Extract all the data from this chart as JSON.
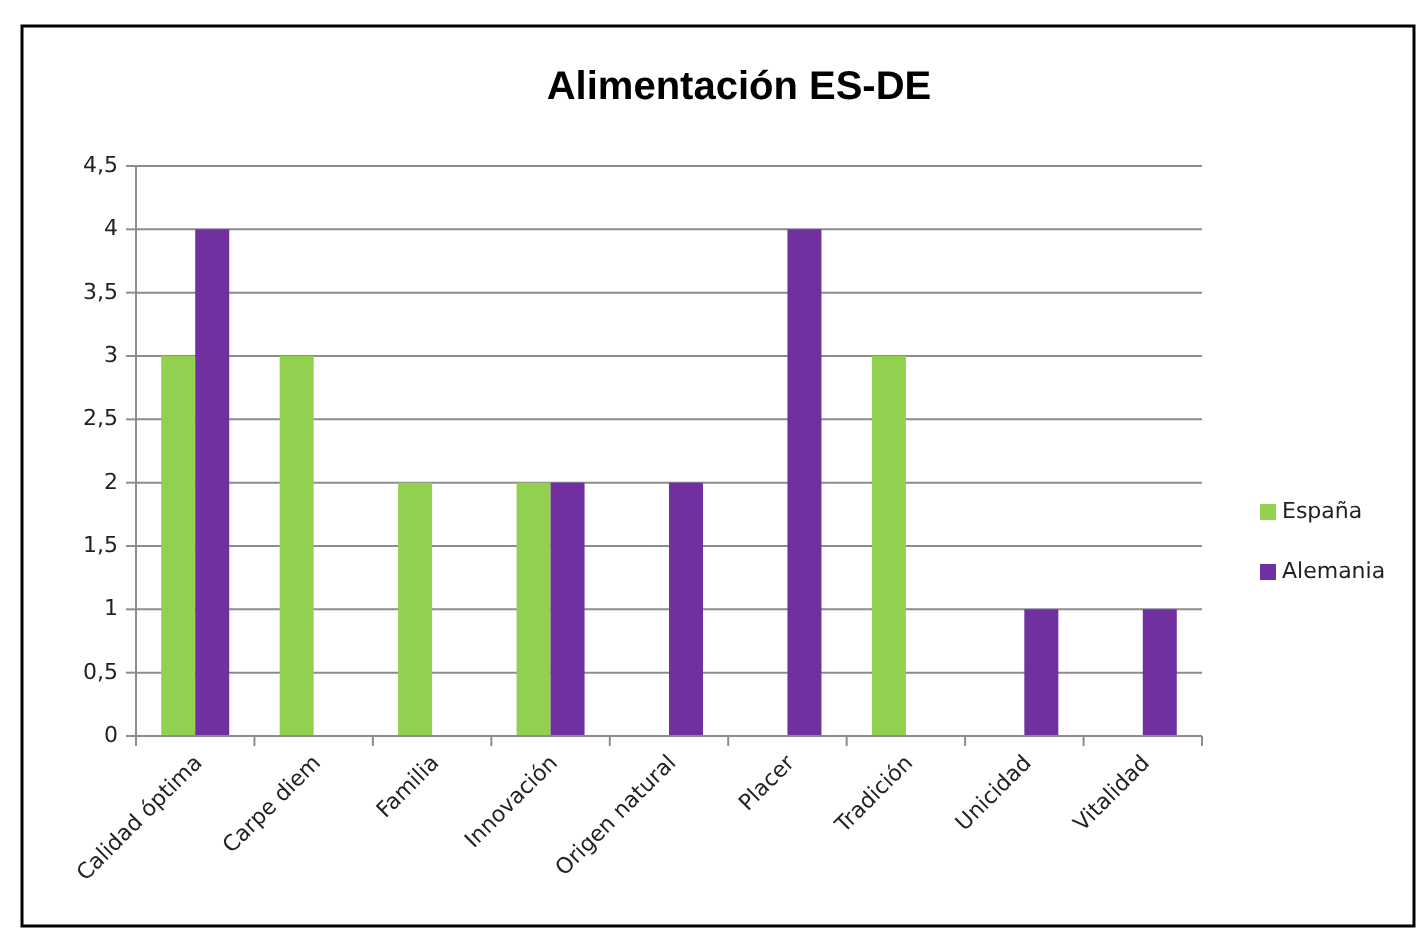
{
  "chart_data": {
    "type": "bar",
    "title": "Alimentación ES-DE",
    "categories": [
      "Calidad óptima",
      "Carpe diem",
      "Familia",
      "Innovación",
      "Origen natural",
      "Placer",
      "Tradición",
      "Unicidad",
      "Vitalidad"
    ],
    "series": [
      {
        "name": "España",
        "color": "#92d050",
        "values": [
          3,
          3,
          2,
          2,
          null,
          null,
          3,
          null,
          null
        ]
      },
      {
        "name": "Alemania",
        "color": "#7030a0",
        "values": [
          4,
          null,
          null,
          2,
          2,
          4,
          null,
          1,
          1
        ]
      }
    ],
    "ylim": [
      0,
      4.5
    ],
    "yticks": [
      0,
      {
        "value": 0.5,
        "label": "0,5"
      },
      1,
      {
        "value": 1.5,
        "label": "1,5"
      },
      2,
      {
        "value": 2.5,
        "label": "2,5"
      },
      3,
      {
        "value": 3.5,
        "label": "3,5"
      },
      4,
      {
        "value": 4.5,
        "label": "4,5"
      }
    ],
    "grid": "y",
    "legend": "right"
  }
}
